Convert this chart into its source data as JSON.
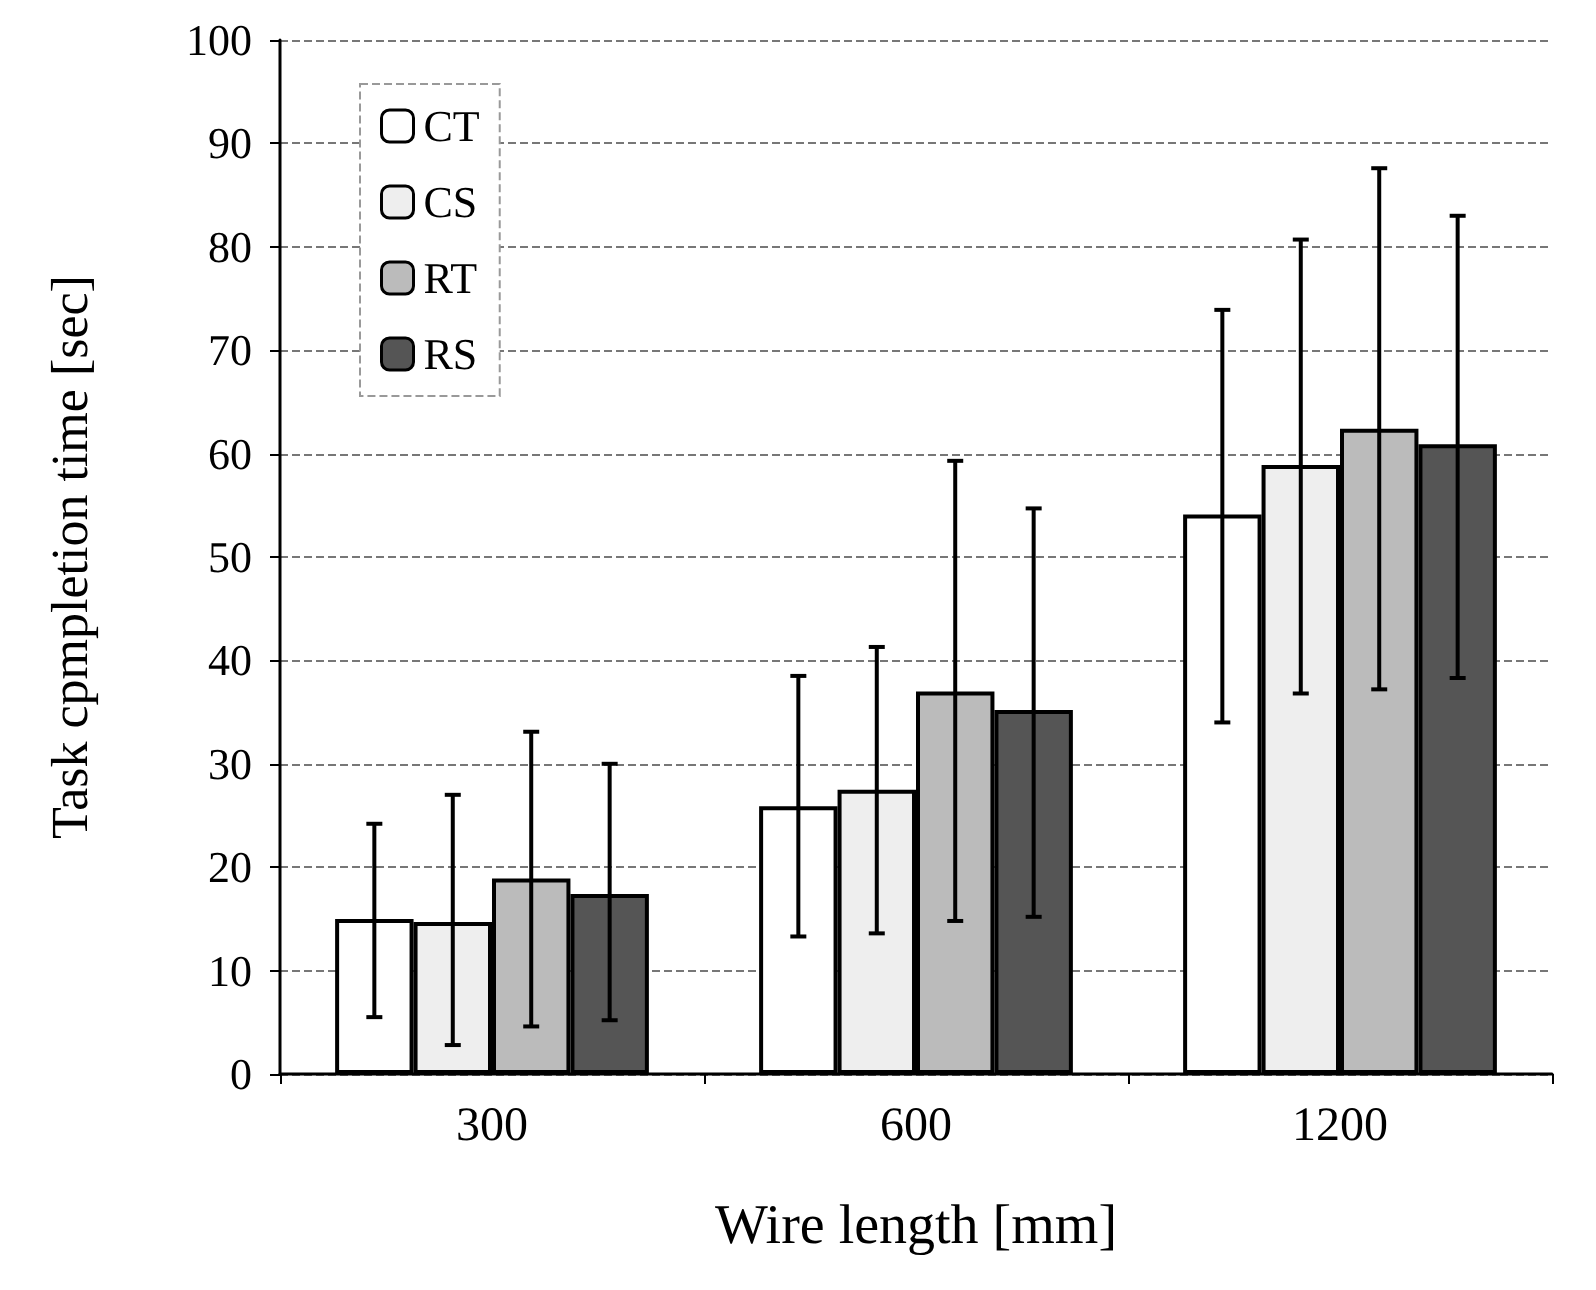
{
  "chart_data": {
    "type": "bar",
    "xlabel": "Wire length [mm]",
    "ylabel": "Task cpmpletion time [sec]",
    "categories": [
      "300",
      "600",
      "1200"
    ],
    "series": [
      {
        "name": "CT",
        "color": "#ffffff",
        "values": [
          15.0,
          25.9,
          54.1
        ],
        "errors": [
          [
            5.5,
            24.2
          ],
          [
            13.3,
            38.5
          ],
          [
            34.0,
            73.9
          ]
        ]
      },
      {
        "name": "CS",
        "color": "#eeeeee",
        "values": [
          14.7,
          27.5,
          58.9
        ],
        "errors": [
          [
            2.8,
            27.0
          ],
          [
            13.6,
            41.3
          ],
          [
            36.8,
            80.7
          ]
        ]
      },
      {
        "name": "RT",
        "color": "#bbbbbb",
        "values": [
          18.9,
          37.0,
          62.4
        ],
        "errors": [
          [
            4.6,
            33.1
          ],
          [
            14.8,
            59.3
          ],
          [
            37.2,
            87.6
          ]
        ]
      },
      {
        "name": "RS",
        "color": "#555555",
        "values": [
          17.4,
          35.2,
          60.9
        ],
        "errors": [
          [
            5.2,
            30.0
          ],
          [
            15.2,
            54.7
          ],
          [
            38.3,
            83.0
          ]
        ]
      }
    ],
    "ylim": [
      0,
      100
    ],
    "yticks": [
      0,
      10,
      20,
      30,
      40,
      50,
      60,
      70,
      80,
      90,
      100
    ],
    "grid": "y",
    "legend": "top left"
  }
}
